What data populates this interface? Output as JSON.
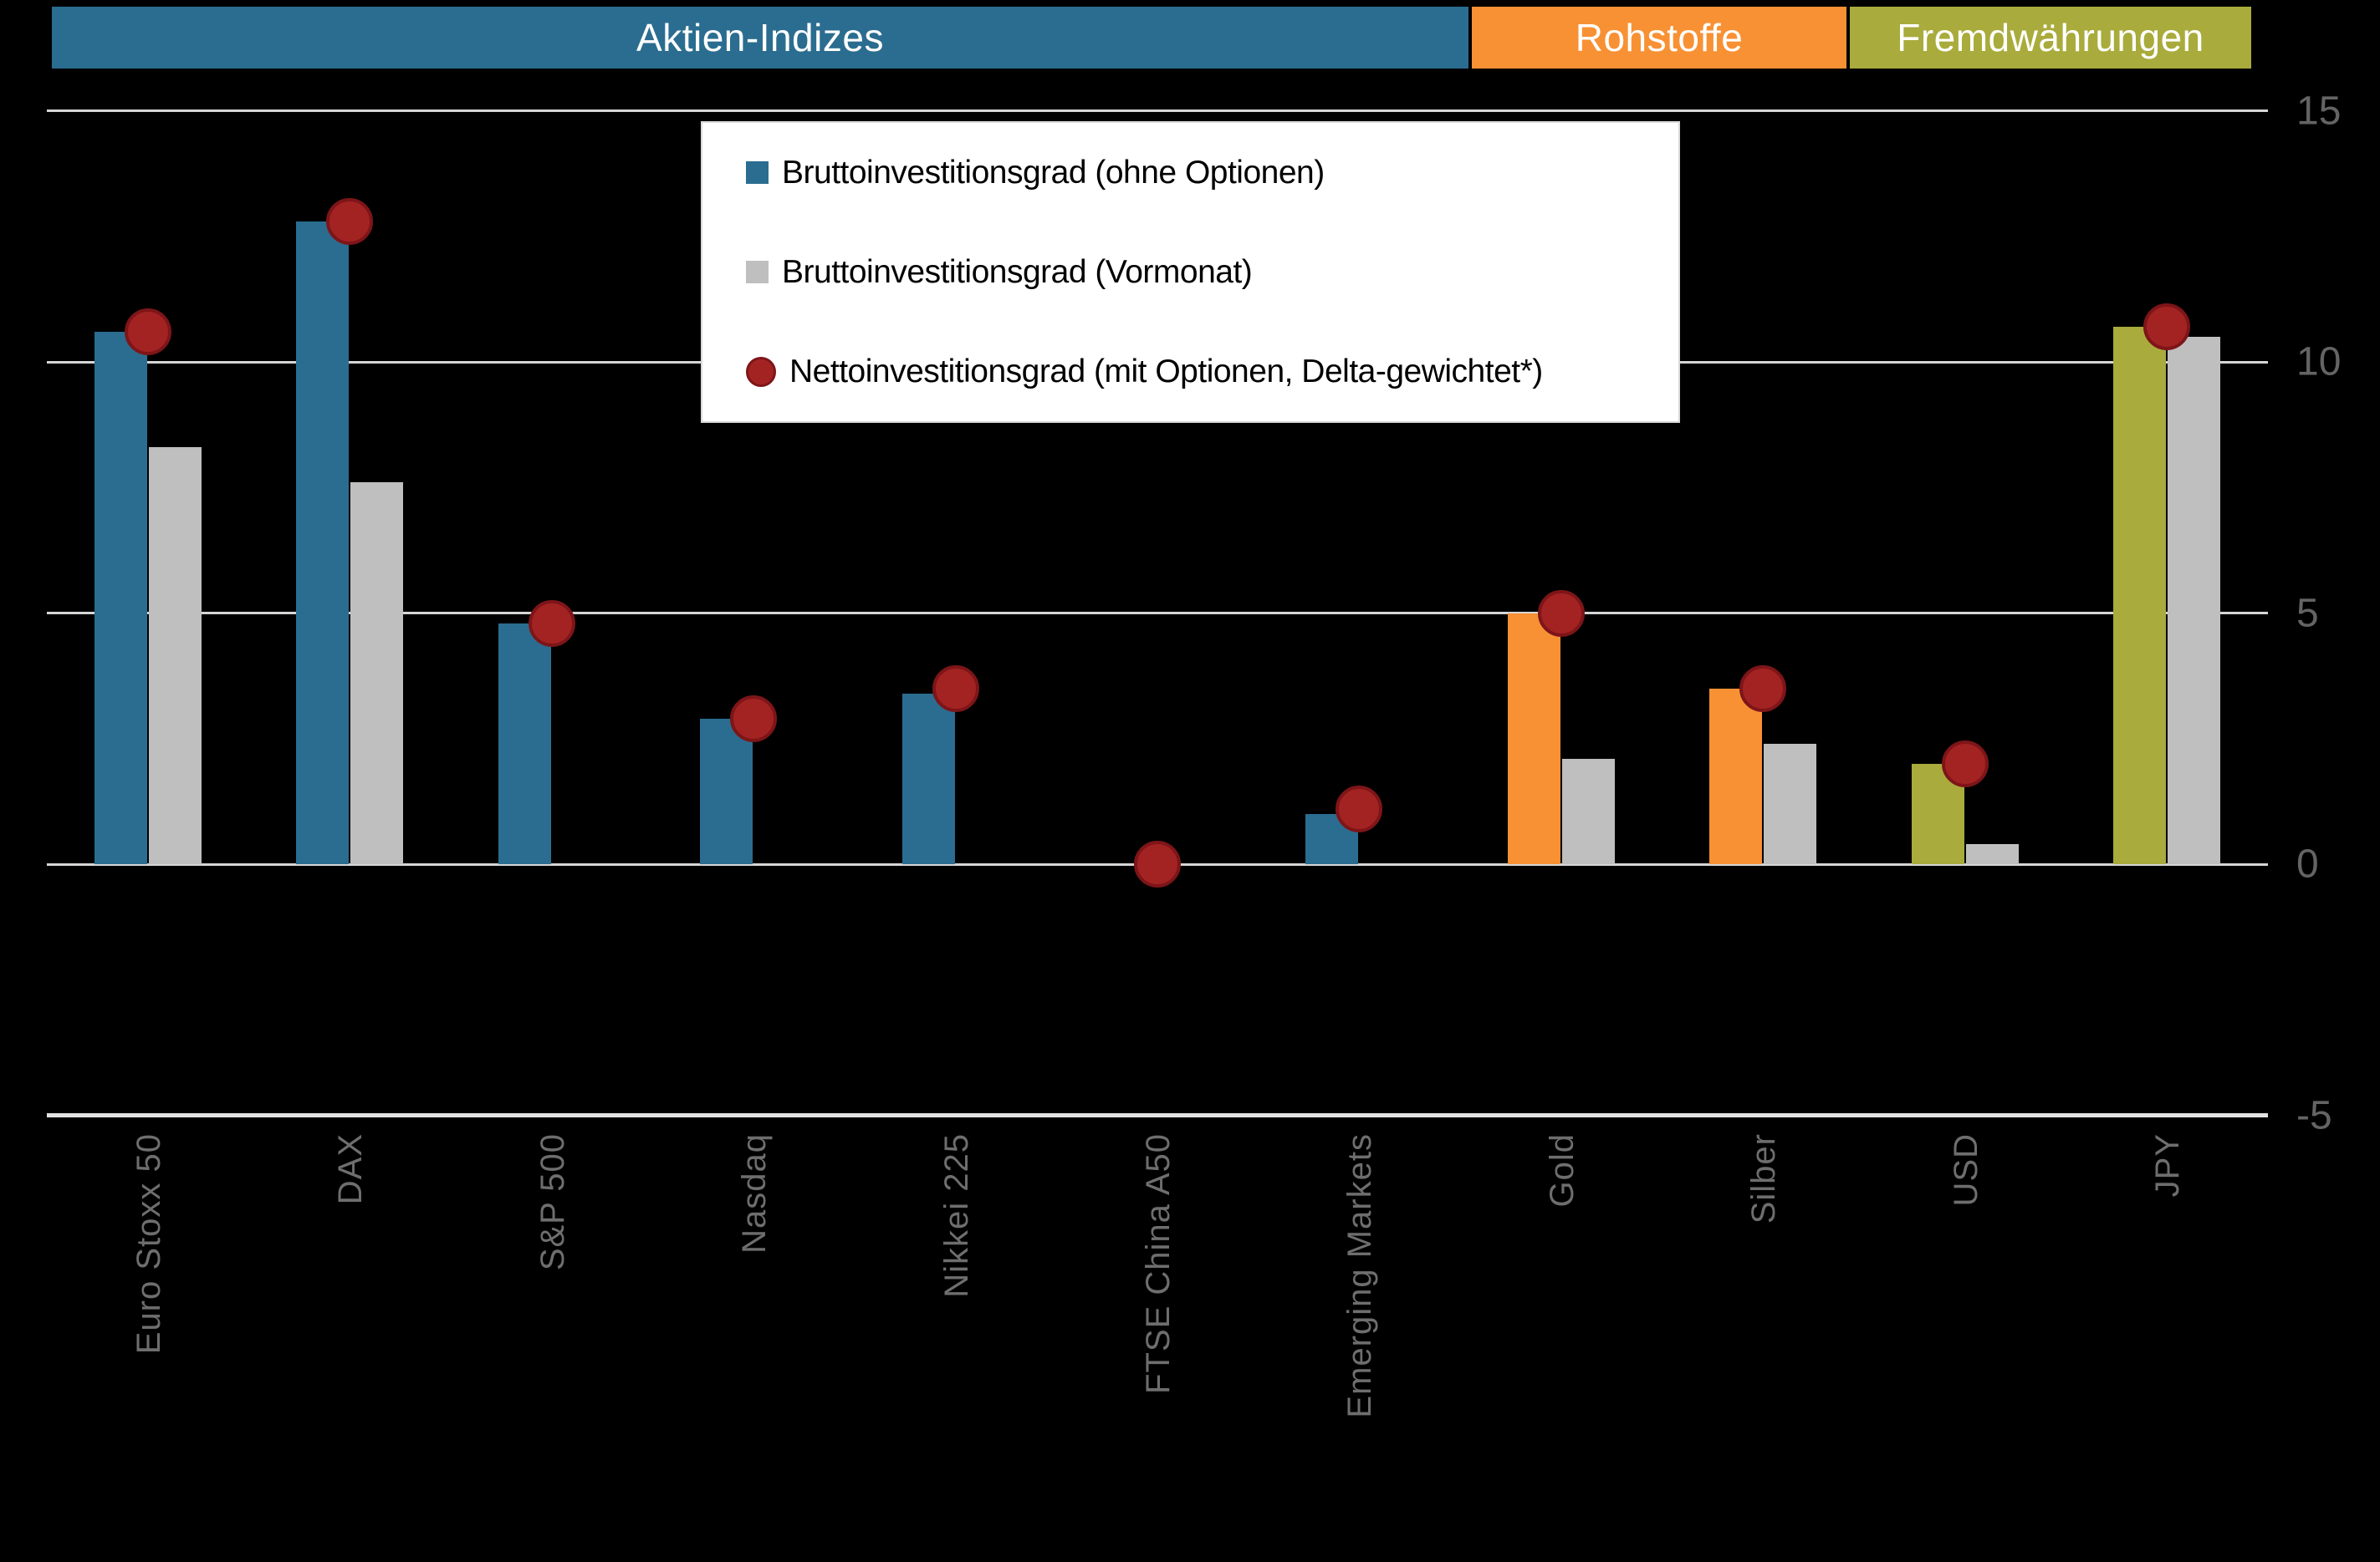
{
  "header": {
    "groups": [
      {
        "id": "aktien",
        "label": "Aktien-Indizes",
        "color": "#2B6D90"
      },
      {
        "id": "rohstoffe",
        "label": "Rohstoffe",
        "color": "#F89134"
      },
      {
        "id": "fx",
        "label": "Fremdwährungen",
        "color": "#A9AB3C"
      }
    ]
  },
  "legend": {
    "items": [
      {
        "label": "Bruttoinvestitionsgrad (ohne Optionen)",
        "swatch": "square",
        "color": "#2B6D90"
      },
      {
        "label": "Bruttoinvestitionsgrad (Vormonat)",
        "swatch": "square",
        "color": "#BFBFBF"
      },
      {
        "label": "Nettoinvestitionsgrad (mit Optionen, Delta-gewichtet*)",
        "swatch": "circle",
        "color": "#A32323"
      }
    ]
  },
  "chart_data": {
    "type": "bar",
    "title": "",
    "categories": [
      "Euro Stoxx 50",
      "DAX",
      "S&P 500",
      "Nasdaq",
      "Nikkei 225",
      "FTSE China A50",
      "Emerging Markets",
      "Gold",
      "Silber",
      "USD",
      "JPY"
    ],
    "category_groups": [
      "aktien",
      "aktien",
      "aktien",
      "aktien",
      "aktien",
      "aktien",
      "aktien",
      "rohstoffe",
      "rohstoffe",
      "fx",
      "fx"
    ],
    "series": [
      {
        "name": "Bruttoinvestitionsgrad (ohne Optionen)",
        "style": "bar-colored-by-group",
        "values": [
          10.6,
          12.8,
          4.8,
          2.9,
          3.4,
          0,
          1.0,
          5.0,
          3.5,
          2.0,
          10.7
        ]
      },
      {
        "name": "Bruttoinvestitionsgrad (Vormonat)",
        "style": "bar-gray",
        "values": [
          8.3,
          7.6,
          0,
          0,
          0,
          0,
          0,
          2.1,
          2.4,
          0.4,
          10.5
        ]
      },
      {
        "name": "Nettoinvestitionsgrad (mit Optionen, Delta-gewichtet*)",
        "style": "point-circle",
        "values": [
          10.6,
          12.8,
          4.8,
          2.9,
          3.5,
          0,
          1.1,
          5.0,
          3.5,
          2.0,
          10.7
        ]
      }
    ],
    "ylim": [
      -5,
      15
    ],
    "yticks": [
      15,
      10,
      5,
      0,
      -5
    ],
    "grid": "horizontal",
    "legend_position": "top-center-overlay",
    "colors": {
      "group_aktien": "#2B6D90",
      "group_rohstoffe": "#F89134",
      "group_fx": "#A9AB3C",
      "vormonat_gray": "#BFBFBF",
      "netto_fill": "#A32323",
      "netto_border": "#7E1518",
      "gridline": "#D6D6D6",
      "axis_text": "#6E6E6E",
      "background": "#000000"
    }
  }
}
